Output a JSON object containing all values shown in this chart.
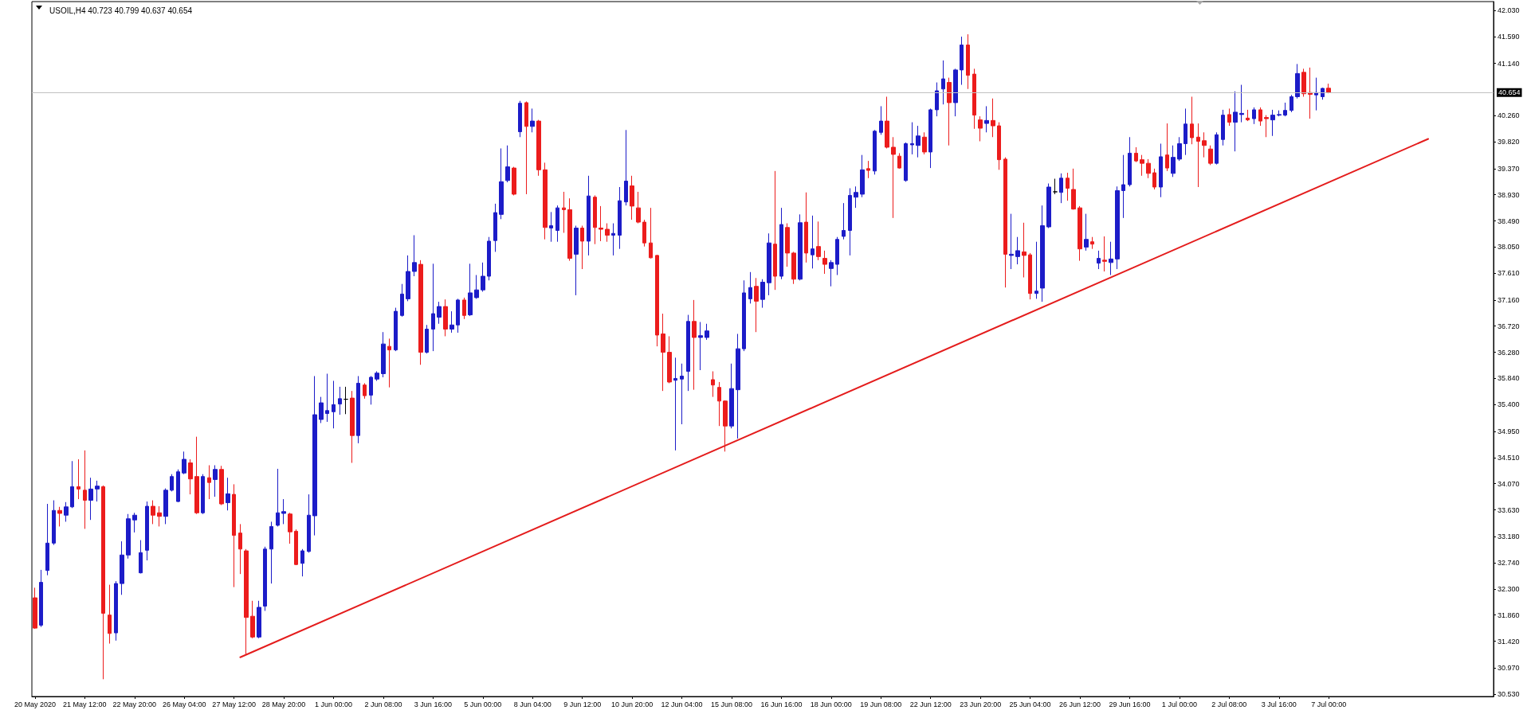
{
  "chart_data": {
    "type": "candlestick",
    "title": "USOIL,H4 40.723 40.799 40.637 40.654",
    "categories": [
      "20 May 2020",
      null,
      null,
      null,
      null,
      null,
      null,
      null,
      "21 May 12:00",
      null,
      null,
      null,
      null,
      null,
      null,
      null,
      "22 May 20:00",
      null,
      null,
      null,
      null,
      null,
      null,
      null,
      "26 May 04:00",
      null,
      null,
      null,
      null,
      null,
      null,
      null,
      "27 May 12:00",
      null,
      null,
      null,
      null,
      null,
      null,
      null,
      "28 May 20:00",
      null,
      null,
      null,
      null,
      null,
      null,
      null,
      "1 Jun 00:00",
      null,
      null,
      null,
      null,
      null,
      null,
      null,
      "2 Jun 08:00",
      null,
      null,
      null,
      null,
      null,
      null,
      null,
      "3 Jun 16:00",
      null,
      null,
      null,
      null,
      null,
      null,
      null,
      "5 Jun 00:00",
      null,
      null,
      null,
      null,
      null,
      null,
      null,
      "8 Jun 04:00",
      null,
      null,
      null,
      null,
      null,
      null,
      null,
      "9 Jun 12:00",
      null,
      null,
      null,
      null,
      null,
      null,
      null,
      "10 Jun 20:00",
      null,
      null,
      null,
      null,
      null,
      null,
      null,
      "12 Jun 04:00",
      null,
      null,
      null,
      null,
      null,
      null,
      null,
      "15 Jun 08:00",
      null,
      null,
      null,
      null,
      null,
      null,
      null,
      "16 Jun 16:00",
      null,
      null,
      null,
      null,
      null,
      null,
      null,
      "18 Jun 00:00",
      null,
      null,
      null,
      null,
      null,
      null,
      null,
      "19 Jun 08:00",
      null,
      null,
      null,
      null,
      null,
      null,
      null,
      "22 Jun 12:00",
      null,
      null,
      null,
      null,
      null,
      null,
      null,
      "23 Jun 20:00",
      null,
      null,
      null,
      null,
      null,
      null,
      null,
      "25 Jun 04:00",
      null,
      null,
      null,
      null,
      null,
      null,
      null,
      "26 Jun 12:00",
      null,
      null,
      null,
      null,
      null,
      null,
      null,
      "29 Jun 16:00",
      null,
      null,
      null,
      null,
      null,
      null,
      null,
      "1 Jul 00:00",
      null,
      null,
      null,
      null,
      null,
      null,
      null,
      "2 Jul 08:00",
      null,
      null,
      null,
      null,
      null,
      null,
      null,
      "3 Jul 16:00",
      null,
      null,
      null,
      null,
      null,
      null,
      null,
      "7 Jul 00:00",
      null,
      null,
      null,
      null,
      null,
      null,
      null,
      null,
      null,
      null,
      null,
      null,
      null,
      null,
      null,
      null,
      null,
      null,
      null,
      null,
      null,
      null,
      null,
      null,
      null,
      null
    ],
    "ohlc": [
      [
        32.15,
        32.32,
        31.63,
        31.64
      ],
      [
        31.69,
        32.62,
        31.66,
        32.41
      ],
      [
        32.61,
        33.73,
        32.53,
        33.07
      ],
      [
        33.07,
        33.79,
        33.04,
        33.62
      ],
      [
        33.62,
        33.68,
        33.35,
        33.57
      ],
      [
        33.54,
        33.76,
        33.43,
        33.68
      ],
      [
        33.68,
        34.45,
        33.66,
        34.02
      ],
      [
        34.02,
        34.48,
        33.81,
        33.98
      ],
      [
        33.96,
        34.63,
        33.31,
        33.79
      ],
      [
        33.79,
        34.17,
        33.46,
        33.98
      ],
      [
        33.98,
        34.12,
        33.77,
        34.03
      ],
      [
        34.02,
        34.04,
        30.78,
        31.89
      ],
      [
        31.86,
        32.37,
        31.38,
        31.55
      ],
      [
        31.56,
        32.43,
        31.43,
        32.39
      ],
      [
        32.39,
        33.1,
        32.2,
        32.87
      ],
      [
        32.87,
        33.56,
        32.81,
        33.48
      ],
      [
        33.46,
        33.58,
        33.25,
        33.54
      ],
      [
        32.57,
        33.12,
        32.56,
        32.91
      ],
      [
        32.95,
        33.77,
        32.78,
        33.69
      ],
      [
        33.69,
        33.79,
        33.39,
        33.54
      ],
      [
        33.58,
        33.69,
        33.35,
        33.52
      ],
      [
        33.52,
        33.99,
        33.39,
        33.96
      ],
      [
        33.96,
        34.23,
        33.94,
        34.19
      ],
      [
        33.77,
        34.31,
        33.76,
        34.27
      ],
      [
        34.25,
        34.61,
        34.23,
        34.48
      ],
      [
        34.42,
        34.48,
        33.89,
        34.15
      ],
      [
        34.19,
        34.86,
        33.56,
        33.58
      ],
      [
        33.58,
        34.23,
        33.56,
        34.19
      ],
      [
        34.17,
        34.38,
        33.81,
        34.09
      ],
      [
        34.14,
        34.38,
        33.85,
        34.31
      ],
      [
        34.31,
        34.37,
        33.71,
        33.73
      ],
      [
        33.75,
        34.17,
        33.62,
        33.9
      ],
      [
        33.89,
        34.06,
        32.33,
        33.2
      ],
      [
        33.24,
        33.39,
        32.55,
        32.97
      ],
      [
        32.94,
        32.97,
        31.2,
        31.82
      ],
      [
        31.84,
        32.1,
        31.47,
        31.49
      ],
      [
        31.49,
        32.1,
        31.47,
        31.99
      ],
      [
        32.01,
        33.01,
        31.93,
        32.97
      ],
      [
        32.97,
        33.43,
        32.39,
        33.35
      ],
      [
        33.37,
        34.32,
        33.35,
        33.58
      ],
      [
        33.57,
        33.81,
        33.39,
        33.6
      ],
      [
        33.56,
        33.58,
        33.06,
        33.26
      ],
      [
        33.27,
        33.3,
        32.7,
        32.71
      ],
      [
        32.73,
        32.97,
        32.51,
        32.94
      ],
      [
        32.93,
        33.89,
        32.91,
        33.54
      ],
      [
        33.53,
        35.88,
        33.2,
        35.23
      ],
      [
        35.15,
        35.53,
        35.09,
        35.43
      ],
      [
        35.25,
        35.92,
        35.11,
        35.3
      ],
      [
        35.28,
        35.8,
        35.0,
        35.4
      ],
      [
        35.41,
        35.7,
        35.23,
        35.5
      ],
      [
        35.49,
        35.7,
        35.24,
        35.49
      ],
      [
        35.51,
        35.63,
        34.42,
        34.88
      ],
      [
        34.88,
        35.88,
        34.75,
        35.76
      ],
      [
        35.73,
        35.76,
        35.5,
        35.55
      ],
      [
        35.56,
        35.88,
        35.4,
        35.86
      ],
      [
        35.83,
        35.96,
        35.8,
        35.93
      ],
      [
        35.92,
        36.62,
        35.86,
        36.42
      ],
      [
        36.38,
        36.51,
        35.69,
        36.32
      ],
      [
        36.32,
        37.03,
        36.3,
        36.97
      ],
      [
        36.9,
        37.43,
        36.88,
        37.26
      ],
      [
        37.18,
        37.91,
        37.14,
        37.64
      ],
      [
        37.64,
        38.25,
        37.56,
        37.79
      ],
      [
        37.76,
        37.83,
        36.07,
        36.28
      ],
      [
        36.28,
        36.74,
        36.26,
        36.67
      ],
      [
        36.67,
        37.77,
        36.3,
        36.93
      ],
      [
        36.87,
        37.13,
        36.76,
        37.05
      ],
      [
        37.05,
        37.17,
        36.55,
        36.67
      ],
      [
        36.67,
        36.97,
        36.61,
        36.74
      ],
      [
        36.74,
        37.18,
        36.61,
        37.16
      ],
      [
        37.16,
        37.2,
        36.84,
        36.9
      ],
      [
        36.91,
        37.77,
        36.89,
        37.28
      ],
      [
        37.2,
        37.58,
        37.18,
        37.33
      ],
      [
        37.33,
        37.79,
        37.3,
        37.56
      ],
      [
        37.56,
        38.22,
        37.49,
        38.15
      ],
      [
        38.16,
        38.78,
        37.97,
        38.63
      ],
      [
        38.6,
        39.71,
        38.52,
        39.15
      ],
      [
        39.17,
        39.76,
        39.14,
        39.4
      ],
      [
        39.38,
        39.4,
        38.92,
        38.94
      ],
      [
        39.99,
        40.51,
        39.9,
        40.47
      ],
      [
        40.48,
        40.5,
        38.94,
        40.08
      ],
      [
        40.08,
        40.38,
        39.98,
        40.17
      ],
      [
        40.17,
        40.19,
        39.25,
        39.35
      ],
      [
        39.35,
        39.47,
        38.18,
        38.38
      ],
      [
        38.37,
        38.64,
        38.14,
        38.41
      ],
      [
        38.33,
        38.75,
        38.14,
        38.71
      ],
      [
        38.71,
        38.98,
        38.29,
        38.68
      ],
      [
        38.68,
        38.87,
        37.82,
        37.86
      ],
      [
        37.93,
        38.41,
        37.24,
        38.37
      ],
      [
        38.37,
        38.41,
        37.68,
        38.15
      ],
      [
        38.15,
        39.25,
        37.91,
        38.91
      ],
      [
        38.89,
        38.92,
        38.1,
        38.38
      ],
      [
        38.37,
        38.74,
        38.15,
        38.35
      ],
      [
        38.35,
        38.45,
        38.14,
        38.25
      ],
      [
        38.25,
        38.45,
        37.91,
        38.28
      ],
      [
        38.25,
        39.06,
        38.02,
        38.83
      ],
      [
        38.81,
        40.02,
        38.75,
        39.16
      ],
      [
        39.08,
        39.25,
        38.51,
        38.74
      ],
      [
        38.71,
        38.98,
        38.45,
        38.47
      ],
      [
        38.47,
        38.51,
        38.06,
        38.12
      ],
      [
        38.12,
        38.71,
        37.86,
        37.87
      ],
      [
        37.91,
        37.92,
        36.38,
        36.57
      ],
      [
        36.59,
        36.93,
        35.63,
        36.28
      ],
      [
        36.28,
        36.55,
        35.76,
        35.78
      ],
      [
        35.81,
        36.19,
        34.63,
        35.84
      ],
      [
        35.83,
        36.09,
        35.07,
        35.88
      ],
      [
        35.96,
        36.91,
        35.63,
        36.8
      ],
      [
        36.8,
        37.16,
        35.65,
        36.53
      ],
      [
        36.53,
        36.79,
        35.98,
        36.56
      ],
      [
        36.53,
        36.76,
        36.49,
        36.64
      ],
      [
        35.82,
        35.96,
        35.53,
        35.73
      ],
      [
        35.69,
        35.78,
        35.04,
        35.46
      ],
      [
        35.46,
        35.47,
        34.61,
        35.04
      ],
      [
        35.04,
        36.09,
        35.0,
        35.67
      ],
      [
        35.65,
        36.59,
        34.83,
        36.34
      ],
      [
        36.34,
        37.49,
        36.3,
        37.28
      ],
      [
        37.18,
        37.63,
        37.1,
        37.37
      ],
      [
        37.39,
        37.53,
        36.62,
        37.14
      ],
      [
        37.17,
        37.51,
        37.03,
        37.46
      ],
      [
        37.45,
        38.28,
        37.24,
        38.12
      ],
      [
        38.1,
        39.33,
        37.33,
        37.56
      ],
      [
        37.56,
        38.71,
        37.51,
        38.43
      ],
      [
        38.38,
        38.45,
        37.72,
        37.95
      ],
      [
        37.95,
        37.97,
        37.43,
        37.51
      ],
      [
        37.51,
        38.6,
        37.49,
        38.46
      ],
      [
        38.47,
        38.97,
        37.79,
        37.95
      ],
      [
        37.92,
        38.58,
        37.69,
        38.02
      ],
      [
        38.06,
        38.48,
        37.83,
        37.89
      ],
      [
        37.86,
        37.99,
        37.6,
        37.76
      ],
      [
        37.69,
        37.83,
        37.39,
        37.79
      ],
      [
        37.76,
        38.22,
        37.58,
        38.18
      ],
      [
        38.23,
        38.79,
        38.18,
        38.33
      ],
      [
        38.33,
        39.04,
        37.91,
        38.92
      ],
      [
        38.89,
        39.07,
        38.71,
        38.97
      ],
      [
        38.94,
        39.6,
        38.89,
        39.35
      ],
      [
        39.37,
        39.5,
        39.21,
        39.34
      ],
      [
        39.33,
        40.02,
        39.27,
        40.0
      ],
      [
        39.98,
        40.42,
        39.94,
        40.17
      ],
      [
        40.17,
        40.58,
        39.71,
        39.73
      ],
      [
        39.73,
        39.9,
        38.54,
        39.61
      ],
      [
        39.58,
        39.63,
        39.37,
        39.38
      ],
      [
        39.17,
        39.81,
        39.15,
        39.79
      ],
      [
        39.77,
        40.15,
        39.61,
        39.79
      ],
      [
        39.76,
        40.09,
        39.56,
        39.92
      ],
      [
        39.9,
        39.98,
        39.61,
        39.65
      ],
      [
        39.65,
        40.38,
        39.38,
        40.36
      ],
      [
        40.36,
        40.82,
        40.25,
        40.68
      ],
      [
        40.71,
        41.19,
        40.45,
        40.88
      ],
      [
        40.82,
        40.9,
        39.76,
        40.48
      ],
      [
        40.48,
        41.05,
        40.25,
        41.03
      ],
      [
        41.03,
        41.59,
        40.78,
        41.45
      ],
      [
        41.45,
        41.63,
        40.71,
        40.94
      ],
      [
        40.96,
        41.05,
        40.04,
        40.27
      ],
      [
        40.19,
        40.25,
        39.83,
        40.05
      ],
      [
        40.13,
        40.42,
        39.98,
        40.18
      ],
      [
        40.18,
        40.55,
        39.9,
        40.09
      ],
      [
        40.09,
        40.15,
        39.35,
        39.52
      ],
      [
        39.53,
        39.56,
        37.37,
        37.93
      ],
      [
        37.91,
        38.61,
        37.68,
        37.93
      ],
      [
        37.89,
        38.22,
        37.76,
        37.99
      ],
      [
        37.97,
        38.46,
        37.54,
        37.91
      ],
      [
        37.92,
        37.95,
        37.17,
        37.27
      ],
      [
        37.27,
        38.14,
        37.18,
        37.31
      ],
      [
        37.36,
        38.75,
        37.13,
        38.41
      ],
      [
        38.39,
        39.12,
        38.37,
        39.06
      ],
      [
        38.98,
        39.2,
        38.94,
        38.98
      ],
      [
        38.97,
        39.29,
        38.79,
        39.21
      ],
      [
        39.21,
        39.3,
        38.83,
        39.04
      ],
      [
        39.02,
        39.37,
        38.68,
        38.69
      ],
      [
        38.71,
        38.74,
        37.82,
        38.02
      ],
      [
        38.05,
        38.61,
        37.99,
        38.18
      ],
      [
        38.14,
        38.22,
        38.02,
        38.1
      ],
      [
        37.78,
        37.99,
        37.68,
        37.86
      ],
      [
        37.83,
        38.23,
        37.64,
        37.81
      ],
      [
        37.79,
        38.14,
        37.58,
        37.85
      ],
      [
        37.85,
        39.07,
        37.68,
        39.0
      ],
      [
        39.0,
        39.6,
        38.54,
        39.1
      ],
      [
        39.1,
        39.9,
        39.07,
        39.63
      ],
      [
        39.63,
        39.73,
        39.48,
        39.5
      ],
      [
        39.52,
        39.6,
        39.25,
        39.46
      ],
      [
        39.46,
        39.53,
        39.21,
        39.29
      ],
      [
        39.3,
        39.37,
        39.02,
        39.06
      ],
      [
        39.06,
        39.79,
        38.89,
        39.57
      ],
      [
        39.6,
        40.13,
        39.33,
        39.38
      ],
      [
        39.29,
        39.76,
        39.23,
        39.56
      ],
      [
        39.53,
        39.9,
        39.5,
        39.79
      ],
      [
        39.79,
        40.38,
        39.6,
        40.12
      ],
      [
        40.12,
        40.58,
        39.78,
        39.89
      ],
      [
        39.9,
        40.13,
        39.06,
        39.83
      ],
      [
        39.84,
        39.98,
        39.56,
        39.76
      ],
      [
        39.7,
        39.76,
        39.43,
        39.46
      ],
      [
        39.46,
        39.98,
        39.44,
        39.94
      ],
      [
        39.86,
        40.36,
        39.76,
        40.27
      ],
      [
        40.28,
        40.38,
        40.09,
        40.15
      ],
      [
        40.15,
        40.67,
        39.66,
        40.32
      ],
      [
        40.28,
        40.78,
        40.15,
        40.3
      ],
      [
        40.22,
        40.36,
        40.17,
        40.19
      ],
      [
        40.21,
        40.4,
        40.12,
        40.36
      ],
      [
        40.36,
        40.4,
        40.09,
        40.17
      ],
      [
        40.23,
        40.27,
        39.9,
        40.21
      ],
      [
        40.19,
        40.36,
        39.92,
        40.27
      ],
      [
        40.27,
        40.35,
        40.25,
        40.28
      ],
      [
        40.27,
        40.48,
        40.25,
        40.35
      ],
      [
        40.35,
        40.61,
        40.32,
        40.58
      ],
      [
        40.58,
        41.13,
        40.55,
        40.97
      ],
      [
        40.99,
        41.05,
        40.58,
        40.63
      ],
      [
        40.65,
        41.07,
        40.21,
        40.62
      ],
      [
        40.61,
        40.9,
        40.35,
        40.65
      ],
      [
        40.58,
        40.73,
        40.53,
        40.72
      ],
      [
        40.723,
        40.799,
        40.637,
        40.654
      ],
      null,
      null,
      null,
      null,
      null,
      null,
      null,
      null,
      null,
      null,
      null,
      null,
      null,
      null,
      null,
      null,
      null,
      null,
      null,
      null,
      null,
      null,
      null,
      null,
      null,
      null
    ],
    "colors": [
      "#ec1c1c",
      "#1c1cc8",
      "#1c1cc8",
      "#1c1cc8",
      "#ec1c1c",
      "#1c1cc8",
      "#1c1cc8",
      "#ec1c1c",
      "#ec1c1c",
      "#1c1cc8",
      "#1c1cc8",
      "#ec1c1c",
      "#ec1c1c",
      "#1c1cc8",
      "#1c1cc8",
      "#1c1cc8",
      "#1c1cc8",
      "#1c1cc8",
      "#1c1cc8",
      "#ec1c1c",
      "#ec1c1c",
      "#1c1cc8",
      "#1c1cc8",
      "#1c1cc8",
      "#1c1cc8",
      "#ec1c1c",
      "#ec1c1c",
      "#1c1cc8",
      "#ec1c1c",
      "#1c1cc8",
      "#ec1c1c",
      "#1c1cc8",
      "#ec1c1c",
      "#ec1c1c",
      "#ec1c1c",
      "#ec1c1c",
      "#1c1cc8",
      "#1c1cc8",
      "#1c1cc8",
      "#1c1cc8",
      "#1c1cc8",
      "#ec1c1c",
      "#ec1c1c",
      "#1c1cc8",
      "#1c1cc8",
      "#1c1cc8",
      "#1c1cc8",
      "#1c1cc8",
      "#1c1cc8",
      "#1c1cc8",
      "#000000",
      "#ec1c1c",
      "#1c1cc8",
      "#ec1c1c",
      "#1c1cc8",
      "#1c1cc8",
      "#1c1cc8",
      "#ec1c1c",
      "#1c1cc8",
      "#1c1cc8",
      "#1c1cc8",
      "#1c1cc8",
      "#ec1c1c",
      "#1c1cc8",
      "#1c1cc8",
      "#1c1cc8",
      "#ec1c1c",
      "#1c1cc8",
      "#1c1cc8",
      "#ec1c1c",
      "#1c1cc8",
      "#1c1cc8",
      "#1c1cc8",
      "#1c1cc8",
      "#1c1cc8",
      "#1c1cc8",
      "#1c1cc8",
      "#ec1c1c",
      "#1c1cc8",
      "#ec1c1c",
      "#1c1cc8",
      "#ec1c1c",
      "#ec1c1c",
      "#1c1cc8",
      "#1c1cc8",
      "#ec1c1c",
      "#ec1c1c",
      "#1c1cc8",
      "#ec1c1c",
      "#1c1cc8",
      "#ec1c1c",
      "#ec1c1c",
      "#ec1c1c",
      "#1c1cc8",
      "#1c1cc8",
      "#1c1cc8",
      "#ec1c1c",
      "#ec1c1c",
      "#ec1c1c",
      "#ec1c1c",
      "#ec1c1c",
      "#ec1c1c",
      "#ec1c1c",
      "#1c1cc8",
      "#1c1cc8",
      "#1c1cc8",
      "#ec1c1c",
      "#1c1cc8",
      "#1c1cc8",
      "#ec1c1c",
      "#ec1c1c",
      "#ec1c1c",
      "#1c1cc8",
      "#1c1cc8",
      "#1c1cc8",
      "#1c1cc8",
      "#ec1c1c",
      "#1c1cc8",
      "#1c1cc8",
      "#ec1c1c",
      "#1c1cc8",
      "#ec1c1c",
      "#ec1c1c",
      "#1c1cc8",
      "#ec1c1c",
      "#1c1cc8",
      "#ec1c1c",
      "#ec1c1c",
      "#1c1cc8",
      "#1c1cc8",
      "#1c1cc8",
      "#1c1cc8",
      "#1c1cc8",
      "#1c1cc8",
      "#ec1c1c",
      "#1c1cc8",
      "#1c1cc8",
      "#ec1c1c",
      "#ec1c1c",
      "#ec1c1c",
      "#1c1cc8",
      "#1c1cc8",
      "#1c1cc8",
      "#ec1c1c",
      "#1c1cc8",
      "#1c1cc8",
      "#1c1cc8",
      "#ec1c1c",
      "#1c1cc8",
      "#1c1cc8",
      "#ec1c1c",
      "#ec1c1c",
      "#ec1c1c",
      "#1c1cc8",
      "#ec1c1c",
      "#ec1c1c",
      "#ec1c1c",
      "#1c1cc8",
      "#1c1cc8",
      "#ec1c1c",
      "#ec1c1c",
      "#1c1cc8",
      "#1c1cc8",
      "#1c1cc8",
      "#000000",
      "#1c1cc8",
      "#ec1c1c",
      "#ec1c1c",
      "#ec1c1c",
      "#1c1cc8",
      "#ec1c1c",
      "#1c1cc8",
      "#ec1c1c",
      "#1c1cc8",
      "#1c1cc8",
      "#1c1cc8",
      "#1c1cc8",
      "#ec1c1c",
      "#ec1c1c",
      "#ec1c1c",
      "#ec1c1c",
      "#1c1cc8",
      "#ec1c1c",
      "#1c1cc8",
      "#1c1cc8",
      "#1c1cc8",
      "#ec1c1c",
      "#ec1c1c",
      "#ec1c1c",
      "#ec1c1c",
      "#1c1cc8",
      "#1c1cc8",
      "#ec1c1c",
      "#1c1cc8",
      "#1c1cc8",
      "#ec1c1c",
      "#1c1cc8",
      "#ec1c1c",
      "#ec1c1c",
      "#1c1cc8",
      "#1c1cc8",
      "#1c1cc8",
      "#1c1cc8",
      "#1c1cc8",
      "#ec1c1c",
      "#ec1c1c",
      "#1c1cc8",
      "#1c1cc8",
      "#ec1c1c",
      null,
      null,
      null,
      null,
      null,
      null,
      null,
      null,
      null,
      null,
      null,
      null,
      null,
      null,
      null,
      null,
      null,
      null,
      null,
      null,
      null,
      null,
      null,
      null,
      null,
      null
    ],
    "series": [
      {
        "type": "line",
        "color": "#e41c1c",
        "line_style": "solid",
        "values": [
          null,
          null,
          null,
          null,
          null,
          null,
          null,
          null,
          null,
          null,
          null,
          null,
          null,
          null,
          null,
          null,
          null,
          null,
          null,
          null,
          null,
          null,
          null,
          null,
          null,
          null,
          null,
          null,
          null,
          null,
          null,
          null,
          null,
          31.15,
          null,
          null,
          null,
          null,
          null,
          null,
          null,
          null,
          null,
          null,
          null,
          null,
          null,
          null,
          null,
          null,
          null,
          null,
          null,
          null,
          null,
          null,
          null,
          null,
          null,
          null,
          null,
          null,
          null,
          null,
          null,
          null,
          null,
          null,
          null,
          null,
          null,
          null,
          null,
          null,
          null,
          null,
          null,
          null,
          null,
          null,
          null,
          null,
          null,
          null,
          null,
          null,
          null,
          null,
          null,
          null,
          null,
          null,
          null,
          null,
          null,
          null,
          null,
          null,
          null,
          null,
          null,
          null,
          null,
          null,
          null,
          null,
          null,
          null,
          null,
          null,
          null,
          null,
          null,
          null,
          null,
          null,
          null,
          null,
          null,
          null,
          null,
          null,
          null,
          null,
          null,
          null,
          null,
          null,
          null,
          null,
          null,
          null,
          null,
          null,
          null,
          null,
          null,
          null,
          null,
          null,
          null,
          null,
          null,
          null,
          null,
          null,
          null,
          null,
          null,
          null,
          null,
          null,
          null,
          null,
          null,
          null,
          null,
          null,
          null,
          null,
          null,
          null,
          null,
          null,
          null,
          null,
          null,
          null,
          null,
          null,
          null,
          null,
          null,
          null,
          null,
          null,
          null,
          null,
          null,
          null,
          null,
          null,
          null,
          null,
          null,
          null,
          null,
          null,
          null,
          null,
          null,
          null,
          null,
          null,
          null,
          null,
          null,
          null,
          null,
          null,
          null,
          null,
          null,
          null,
          null,
          null,
          null,
          null,
          null,
          null,
          null,
          null,
          null,
          null,
          null,
          null,
          null,
          null,
          null,
          null,
          null,
          null,
          null,
          null,
          39.87,
          null,
          null,
          null,
          null,
          null,
          null,
          null,
          null,
          null,
          null
        ]
      }
    ],
    "ylim": [
      30.49,
      42.18
    ],
    "yticks": [
      {
        "value": 30.53,
        "label": "30.530"
      },
      {
        "value": 30.97,
        "label": "30.970"
      },
      {
        "value": 31.42,
        "label": "31.420"
      },
      {
        "value": 31.86,
        "label": "31.860"
      },
      {
        "value": 32.3,
        "label": "32.300"
      },
      {
        "value": 32.74,
        "label": "32.740"
      },
      {
        "value": 33.18,
        "label": "33.180"
      },
      {
        "value": 33.63,
        "label": "33.630"
      },
      {
        "value": 34.07,
        "label": "34.070"
      },
      {
        "value": 34.51,
        "label": "34.510"
      },
      {
        "value": 34.95,
        "label": "34.950"
      },
      {
        "value": 35.4,
        "label": "35.400"
      },
      {
        "value": 35.84,
        "label": "35.840"
      },
      {
        "value": 36.28,
        "label": "36.280"
      },
      {
        "value": 36.72,
        "label": "36.720"
      },
      {
        "value": 37.16,
        "label": "37.160"
      },
      {
        "value": 37.61,
        "label": "37.610"
      },
      {
        "value": 38.05,
        "label": "38.050"
      },
      {
        "value": 38.49,
        "label": "38.490"
      },
      {
        "value": 38.93,
        "label": "38.930"
      },
      {
        "value": 39.37,
        "label": "39.370"
      },
      {
        "value": 39.82,
        "label": "39.820"
      },
      {
        "value": 40.26,
        "label": "40.260"
      },
      {
        "value": 41.14,
        "label": "41.140"
      },
      {
        "value": 41.59,
        "label": "41.590"
      },
      {
        "value": 42.03,
        "label": "42.030"
      }
    ],
    "ref_lines": [
      {
        "axis": "y",
        "value": 40.654,
        "label": "40.654",
        "color": "#c0c0c0"
      }
    ],
    "grid": false
  }
}
